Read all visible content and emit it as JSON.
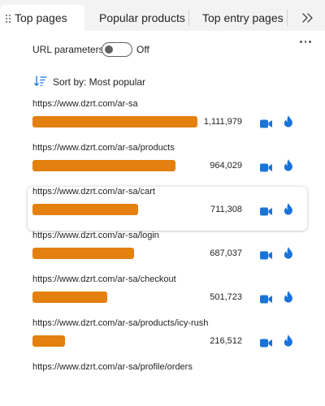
{
  "tabs": [
    {
      "label": "Top pages",
      "active": true
    },
    {
      "label": "Popular products",
      "active": false
    },
    {
      "label": "Top entry pages",
      "active": false
    }
  ],
  "icons": {
    "grip": "drag-handle-icon",
    "overflow": "chevron-double-right-icon",
    "more": "more-horizontal-icon",
    "sort": "sort-descending-icon",
    "recording": "video-camera-icon",
    "heatmap": "flame-icon"
  },
  "colors": {
    "bar": "#e3800f",
    "accent": "#1a73d9"
  },
  "toolbar": {
    "url_params_label": "URL parameters",
    "url_params_state": "Off",
    "url_params_on": false,
    "sort_label": "Sort by: Most popular"
  },
  "pages": [
    {
      "url": "https://www.dzrt.com/ar-sa",
      "count": "1,111,979",
      "value": 1111979
    },
    {
      "url": "https://www.dzrt.com/ar-sa/products",
      "count": "964,029",
      "value": 964029
    },
    {
      "url": "https://www.dzrt.com/ar-sa/cart",
      "count": "711,308",
      "value": 711308
    },
    {
      "url": "https://www.dzrt.com/ar-sa/login",
      "count": "687,037",
      "value": 687037
    },
    {
      "url": "https://www.dzrt.com/ar-sa/checkout",
      "count": "501,723",
      "value": 501723
    },
    {
      "url": "https://www.dzrt.com/ar-sa/products/icy-rush",
      "count": "216,512",
      "value": 216512
    },
    {
      "url": "https://www.dzrt.com/ar-sa/profile/orders",
      "count": null,
      "value": null
    }
  ]
}
